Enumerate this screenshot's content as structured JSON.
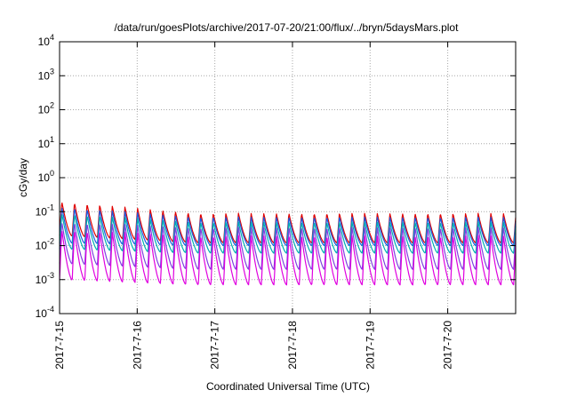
{
  "chart_data": {
    "type": "line",
    "title": "/data/run/goesPlots/archive/2017-07-20/21:00/flux/../bryn/5daysMars.plot",
    "xlabel": "Coordinated Universal Time (UTC)",
    "ylabel": "cGy/day",
    "yscale": "log",
    "ylim": [
      0.0001,
      10000
    ],
    "y_ticks": [
      {
        "value": 0.0001,
        "base": "10",
        "exp": "-4"
      },
      {
        "value": 0.001,
        "base": "10",
        "exp": "-3"
      },
      {
        "value": 0.01,
        "base": "10",
        "exp": "-2"
      },
      {
        "value": 0.1,
        "base": "10",
        "exp": "-1"
      },
      {
        "value": 1,
        "base": "10",
        "exp": "0"
      },
      {
        "value": 10,
        "base": "10",
        "exp": "1"
      },
      {
        "value": 100,
        "base": "10",
        "exp": "2"
      },
      {
        "value": 1000,
        "base": "10",
        "exp": "3"
      },
      {
        "value": 10000,
        "base": "10",
        "exp": "4"
      }
    ],
    "xlim": [
      "2017-07-15 00:00",
      "2017-07-20 21:00"
    ],
    "x_ticks": [
      {
        "value": "2017-07-15",
        "label": "2017-7-15"
      },
      {
        "value": "2017-07-16",
        "label": "2017-7-16"
      },
      {
        "value": "2017-07-17",
        "label": "2017-7-17"
      },
      {
        "value": "2017-07-18",
        "label": "2017-7-18"
      },
      {
        "value": "2017-07-19",
        "label": "2017-7-19"
      },
      {
        "value": "2017-07-20",
        "label": "2017-7-20"
      }
    ],
    "grid": true,
    "orbit_period_hours": 3.9,
    "series": [
      {
        "color": "#e00000",
        "peak_early": 0.2,
        "peak_late": 0.09,
        "trough_early": 0.02,
        "trough_late": 0.012
      },
      {
        "color": "#1a5ae0",
        "peak_early": 0.14,
        "peak_late": 0.07,
        "trough_early": 0.012,
        "trough_late": 0.01
      },
      {
        "color": "#00b0b0",
        "peak_early": 0.09,
        "peak_late": 0.05,
        "trough_early": 0.008,
        "trough_late": 0.006
      },
      {
        "color": "#8040e0",
        "peak_early": 0.05,
        "peak_late": 0.035,
        "trough_early": 0.003,
        "trough_late": 0.002
      },
      {
        "color": "#e000e0",
        "peak_early": 0.03,
        "peak_late": 0.02,
        "trough_early": 0.001,
        "trough_late": 0.0007
      }
    ]
  }
}
